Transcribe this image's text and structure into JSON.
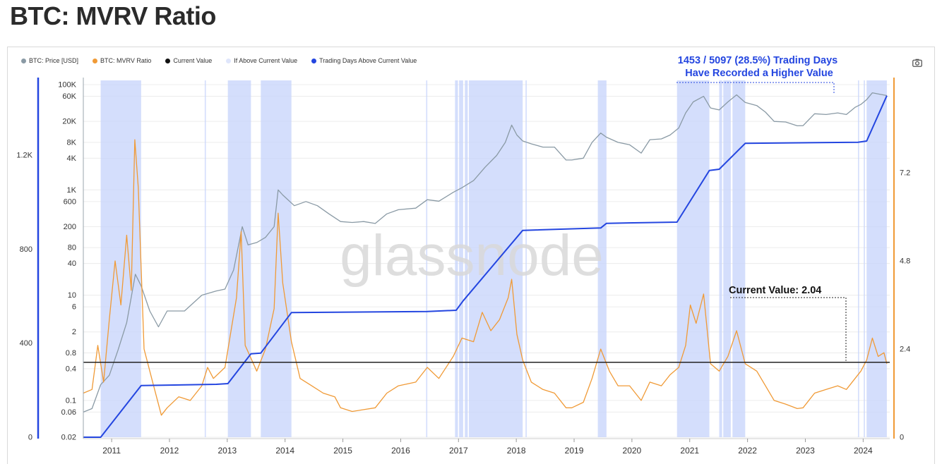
{
  "page": {
    "title": "BTC: MVRV Ratio"
  },
  "legend": [
    {
      "label": "BTC: Price [USD]",
      "color": "#8a9aa5"
    },
    {
      "label": "BTC: MVRV Ratio",
      "color": "#f09a36"
    },
    {
      "label": "Current Value",
      "color": "#111111"
    },
    {
      "label": "If Above Current Value",
      "color": "#dfe6fb"
    },
    {
      "label": "Trading Days Above Current Value",
      "color": "#2446e0"
    }
  ],
  "watermark": "glassnode",
  "toolbar": {
    "camera_icon": "camera-icon"
  },
  "annotations": {
    "trading_days_line1": "1453 / 5097 (28.5%) Trading Days",
    "trading_days_line2": "Have Recorded a Higher Value",
    "current_value": "Current Value: 2.04"
  },
  "chart_data": {
    "type": "line",
    "title": "BTC: MVRV Ratio",
    "x_ticks": [
      "2011",
      "2012",
      "2013",
      "2014",
      "2015",
      "2016",
      "2017",
      "2018",
      "2019",
      "2020",
      "2021",
      "2022",
      "2023",
      "2024"
    ],
    "xlim": [
      2010.55,
      2024.5
    ],
    "y_price_ticks": [
      "100K",
      "60K",
      "20K",
      "8K",
      "4K",
      "1K",
      "600",
      "200",
      "80",
      "40",
      "10",
      "6",
      "2",
      "0.8",
      "0.4",
      "0.1",
      "0.06",
      "0.02"
    ],
    "y_price_scale": "log",
    "y_price_lim": [
      0.02,
      100000
    ],
    "y_days_ticks": [
      "0",
      "400",
      "800",
      "1.2K"
    ],
    "y_days_lim": [
      0,
      1500
    ],
    "y_mvrv_ticks": [
      "0",
      "2.4",
      "4.8",
      "7.2"
    ],
    "y_mvrv_lim": [
      0,
      9.6
    ],
    "current_value": 2.04,
    "series": [
      {
        "name": "BTC: Price [USD]",
        "color": "#8a9aa5",
        "axis": "price",
        "points": [
          [
            2010.55,
            0.06
          ],
          [
            2010.7,
            0.07
          ],
          [
            2010.85,
            0.2
          ],
          [
            2011.0,
            0.3
          ],
          [
            2011.15,
            0.9
          ],
          [
            2011.3,
            3
          ],
          [
            2011.45,
            25
          ],
          [
            2011.55,
            15
          ],
          [
            2011.7,
            5
          ],
          [
            2011.85,
            2.5
          ],
          [
            2012.0,
            5
          ],
          [
            2012.3,
            5
          ],
          [
            2012.6,
            10
          ],
          [
            2012.85,
            12
          ],
          [
            2013.0,
            13
          ],
          [
            2013.15,
            30
          ],
          [
            2013.3,
            200
          ],
          [
            2013.4,
            90
          ],
          [
            2013.55,
            100
          ],
          [
            2013.7,
            125
          ],
          [
            2013.85,
            200
          ],
          [
            2013.92,
            1000
          ],
          [
            2014.0,
            800
          ],
          [
            2014.2,
            500
          ],
          [
            2014.4,
            600
          ],
          [
            2014.6,
            500
          ],
          [
            2014.8,
            350
          ],
          [
            2015.0,
            250
          ],
          [
            2015.2,
            240
          ],
          [
            2015.4,
            250
          ],
          [
            2015.6,
            230
          ],
          [
            2015.8,
            350
          ],
          [
            2016.0,
            420
          ],
          [
            2016.3,
            450
          ],
          [
            2016.5,
            650
          ],
          [
            2016.7,
            610
          ],
          [
            2016.95,
            900
          ],
          [
            2017.1,
            1100
          ],
          [
            2017.3,
            1500
          ],
          [
            2017.5,
            2700
          ],
          [
            2017.7,
            4500
          ],
          [
            2017.85,
            8000
          ],
          [
            2017.96,
            17000
          ],
          [
            2018.05,
            11000
          ],
          [
            2018.15,
            8500
          ],
          [
            2018.3,
            7500
          ],
          [
            2018.5,
            6500
          ],
          [
            2018.7,
            6500
          ],
          [
            2018.9,
            3700
          ],
          [
            2019.0,
            3700
          ],
          [
            2019.2,
            4000
          ],
          [
            2019.35,
            8000
          ],
          [
            2019.5,
            12000
          ],
          [
            2019.6,
            10000
          ],
          [
            2019.8,
            8000
          ],
          [
            2020.0,
            7200
          ],
          [
            2020.2,
            5000
          ],
          [
            2020.35,
            9000
          ],
          [
            2020.55,
            9300
          ],
          [
            2020.7,
            11000
          ],
          [
            2020.85,
            15000
          ],
          [
            2020.97,
            29000
          ],
          [
            2021.1,
            47000
          ],
          [
            2021.28,
            60000
          ],
          [
            2021.4,
            36000
          ],
          [
            2021.55,
            33000
          ],
          [
            2021.7,
            47000
          ],
          [
            2021.85,
            64000
          ],
          [
            2022.0,
            46000
          ],
          [
            2022.2,
            40000
          ],
          [
            2022.35,
            30000
          ],
          [
            2022.5,
            20000
          ],
          [
            2022.7,
            19500
          ],
          [
            2022.9,
            16500
          ],
          [
            2023.0,
            16600
          ],
          [
            2023.2,
            28000
          ],
          [
            2023.4,
            27000
          ],
          [
            2023.6,
            29000
          ],
          [
            2023.75,
            27000
          ],
          [
            2023.9,
            37000
          ],
          [
            2024.0,
            42000
          ],
          [
            2024.1,
            52000
          ],
          [
            2024.2,
            70000
          ],
          [
            2024.35,
            65000
          ],
          [
            2024.45,
            62000
          ]
        ]
      },
      {
        "name": "BTC: MVRV Ratio",
        "color": "#f09a36",
        "axis": "mvrv",
        "points": [
          [
            2010.55,
            1.2
          ],
          [
            2010.7,
            1.3
          ],
          [
            2010.8,
            2.5
          ],
          [
            2010.9,
            1.5
          ],
          [
            2011.0,
            3.2
          ],
          [
            2011.1,
            4.8
          ],
          [
            2011.2,
            3.6
          ],
          [
            2011.3,
            5.5
          ],
          [
            2011.38,
            4.0
          ],
          [
            2011.44,
            8.1
          ],
          [
            2011.5,
            6.8
          ],
          [
            2011.6,
            2.4
          ],
          [
            2011.75,
            1.5
          ],
          [
            2011.9,
            0.6
          ],
          [
            2012.0,
            0.8
          ],
          [
            2012.2,
            1.1
          ],
          [
            2012.4,
            1.0
          ],
          [
            2012.6,
            1.4
          ],
          [
            2012.7,
            1.9
          ],
          [
            2012.8,
            1.6
          ],
          [
            2013.0,
            1.9
          ],
          [
            2013.2,
            3.8
          ],
          [
            2013.28,
            5.6
          ],
          [
            2013.35,
            2.5
          ],
          [
            2013.55,
            1.8
          ],
          [
            2013.7,
            2.4
          ],
          [
            2013.85,
            3.5
          ],
          [
            2013.92,
            6.1
          ],
          [
            2014.0,
            4.2
          ],
          [
            2014.15,
            2.6
          ],
          [
            2014.3,
            1.6
          ],
          [
            2014.5,
            1.4
          ],
          [
            2014.7,
            1.2
          ],
          [
            2014.9,
            1.1
          ],
          [
            2015.0,
            0.8
          ],
          [
            2015.2,
            0.7
          ],
          [
            2015.4,
            0.75
          ],
          [
            2015.6,
            0.8
          ],
          [
            2015.8,
            1.2
          ],
          [
            2016.0,
            1.4
          ],
          [
            2016.3,
            1.5
          ],
          [
            2016.5,
            1.9
          ],
          [
            2016.7,
            1.6
          ],
          [
            2016.95,
            2.2
          ],
          [
            2017.1,
            2.7
          ],
          [
            2017.3,
            2.6
          ],
          [
            2017.45,
            3.4
          ],
          [
            2017.6,
            2.9
          ],
          [
            2017.75,
            3.2
          ],
          [
            2017.9,
            3.8
          ],
          [
            2017.96,
            4.3
          ],
          [
            2018.05,
            2.8
          ],
          [
            2018.15,
            2.1
          ],
          [
            2018.3,
            1.5
          ],
          [
            2018.5,
            1.3
          ],
          [
            2018.7,
            1.2
          ],
          [
            2018.9,
            0.8
          ],
          [
            2019.0,
            0.8
          ],
          [
            2019.2,
            0.95
          ],
          [
            2019.35,
            1.6
          ],
          [
            2019.5,
            2.4
          ],
          [
            2019.65,
            1.8
          ],
          [
            2019.8,
            1.4
          ],
          [
            2020.0,
            1.4
          ],
          [
            2020.2,
            1.0
          ],
          [
            2020.35,
            1.5
          ],
          [
            2020.55,
            1.4
          ],
          [
            2020.7,
            1.7
          ],
          [
            2020.85,
            1.9
          ],
          [
            2020.97,
            2.5
          ],
          [
            2021.05,
            3.6
          ],
          [
            2021.15,
            3.1
          ],
          [
            2021.28,
            3.9
          ],
          [
            2021.4,
            2.0
          ],
          [
            2021.55,
            1.8
          ],
          [
            2021.7,
            2.2
          ],
          [
            2021.85,
            2.9
          ],
          [
            2022.0,
            2.0
          ],
          [
            2022.2,
            1.8
          ],
          [
            2022.35,
            1.4
          ],
          [
            2022.5,
            1.0
          ],
          [
            2022.7,
            0.9
          ],
          [
            2022.9,
            0.78
          ],
          [
            2023.0,
            0.8
          ],
          [
            2023.2,
            1.2
          ],
          [
            2023.4,
            1.3
          ],
          [
            2023.6,
            1.4
          ],
          [
            2023.75,
            1.3
          ],
          [
            2023.9,
            1.6
          ],
          [
            2024.0,
            1.8
          ],
          [
            2024.1,
            2.1
          ],
          [
            2024.2,
            2.7
          ],
          [
            2024.3,
            2.2
          ],
          [
            2024.4,
            2.3
          ],
          [
            2024.45,
            2.0
          ]
        ]
      },
      {
        "name": "Trading Days Above Current Value",
        "color": "#2446e0",
        "axis": "days",
        "points": [
          [
            2010.55,
            0
          ],
          [
            2010.85,
            0
          ],
          [
            2011.55,
            220
          ],
          [
            2012.85,
            225
          ],
          [
            2013.05,
            228
          ],
          [
            2013.45,
            355
          ],
          [
            2013.62,
            358
          ],
          [
            2014.15,
            530
          ],
          [
            2016.5,
            535
          ],
          [
            2017.0,
            540
          ],
          [
            2017.12,
            580
          ],
          [
            2018.15,
            880
          ],
          [
            2019.5,
            890
          ],
          [
            2019.6,
            910
          ],
          [
            2020.82,
            915
          ],
          [
            2021.38,
            1135
          ],
          [
            2021.55,
            1140
          ],
          [
            2022.0,
            1250
          ],
          [
            2023.95,
            1255
          ],
          [
            2024.1,
            1260
          ],
          [
            2024.45,
            1453
          ]
        ]
      }
    ],
    "shaded_regions_above_current": [
      [
        2010.85,
        2011.55
      ],
      [
        2012.65,
        2012.67
      ],
      [
        2013.05,
        2013.45
      ],
      [
        2013.62,
        2014.15
      ],
      [
        2016.48,
        2016.5
      ],
      [
        2016.98,
        2017.03
      ],
      [
        2017.05,
        2017.12
      ],
      [
        2017.15,
        2017.2
      ],
      [
        2017.22,
        2018.15
      ],
      [
        2018.2,
        2018.22
      ],
      [
        2019.45,
        2019.6
      ],
      [
        2020.82,
        2021.38
      ],
      [
        2021.55,
        2021.6
      ],
      [
        2021.62,
        2021.75
      ],
      [
        2021.78,
        2022.0
      ],
      [
        2023.95,
        2023.97
      ],
      [
        2024.05,
        2024.07
      ],
      [
        2024.1,
        2024.45
      ]
    ]
  }
}
